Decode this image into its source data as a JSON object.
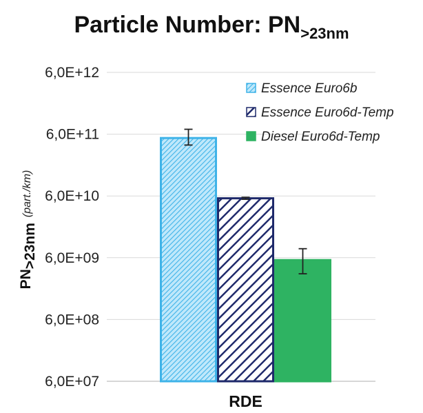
{
  "chart_data": {
    "type": "bar",
    "title": {
      "main": "Particle Number: PN",
      "sub": ">23nm"
    },
    "ylabel": {
      "main": "PN",
      "sub": ">23nm",
      "unit": "(part./km)"
    },
    "yscale": "log",
    "ylim": [
      60000000,
      6000000000000
    ],
    "yticks": [
      {
        "value": 6000000000000.0,
        "label": "6,0E+12"
      },
      {
        "value": 600000000000.0,
        "label": "6,0E+11"
      },
      {
        "value": 60000000000.0,
        "label": "6,0E+10"
      },
      {
        "value": 6000000000.0,
        "label": "6,0E+09"
      },
      {
        "value": 600000000.0,
        "label": "6,0E+08"
      },
      {
        "value": 60000000.0,
        "label": "6,0E+07"
      }
    ],
    "categories": [
      "RDE"
    ],
    "series": [
      {
        "name": "Essence Euro6b",
        "values": [
          520000000000
        ],
        "error": [
          [
            400000000000,
            720000000000
          ]
        ],
        "color": "#3fb3e8",
        "pattern": "light-hatch"
      },
      {
        "name": "Essence Euro6d-Temp",
        "values": [
          55000000000
        ],
        "error": [
          [
            53000000000,
            57000000000
          ]
        ],
        "color": "#1f2a6b",
        "pattern": "dark-hatch"
      },
      {
        "name": "Diesel Euro6d-Temp",
        "values": [
          5500000000
        ],
        "error": [
          [
            3300000000,
            8400000000
          ]
        ],
        "color": "#2eb362",
        "pattern": "solid"
      }
    ],
    "grid": true,
    "legend_position": "top-right"
  }
}
